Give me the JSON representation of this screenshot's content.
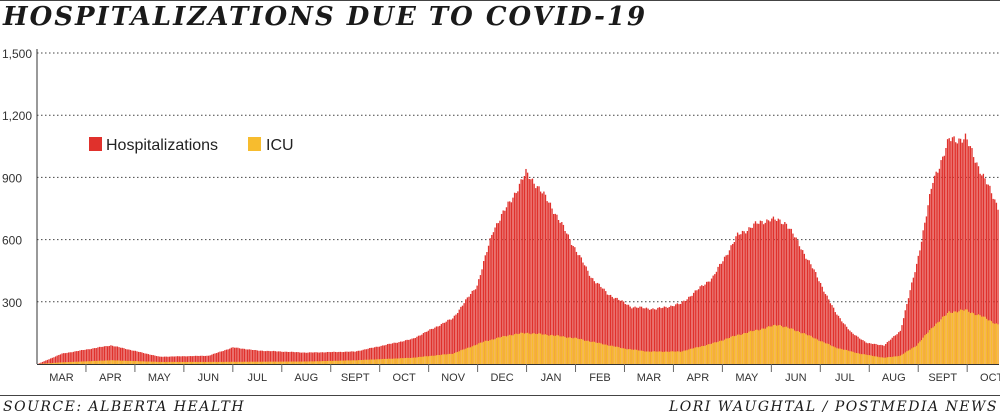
{
  "title": "HOSPITALIZATIONS DUE TO COVID-19",
  "source": "SOURCE: ALBERTA HEALTH",
  "credit": "LORI WAUGHTAL / POSTMEDIA NEWS",
  "colors": {
    "hospitalizations": "#e0312c",
    "icu": "#f7bc2e"
  },
  "chart_data": {
    "type": "bar",
    "ylim": [
      0,
      1500
    ],
    "yticks": [
      {
        "value": 300,
        "label": "300"
      },
      {
        "value": 600,
        "label": "600"
      },
      {
        "value": 900,
        "label": "900"
      },
      {
        "value": 1200,
        "label": "1,200"
      },
      {
        "value": 1500,
        "label": "1,500"
      }
    ],
    "grid": "horizontal-dotted",
    "legend_position": "upper-left",
    "months": [
      "MAR",
      "APR",
      "MAY",
      "JUN",
      "JUL",
      "AUG",
      "SEPT",
      "OCT",
      "NOV",
      "DEC",
      "JAN",
      "FEB",
      "MAR",
      "APR",
      "MAY",
      "JUN",
      "JUL",
      "AUG",
      "SEPT",
      "OCT"
    ],
    "series": [
      {
        "name": "Hospitalizations",
        "key": "hospitalizations",
        "points": [
          [
            0,
            0
          ],
          [
            15,
            50
          ],
          [
            45,
            90
          ],
          [
            75,
            35
          ],
          [
            105,
            40
          ],
          [
            120,
            80
          ],
          [
            135,
            65
          ],
          [
            165,
            55
          ],
          [
            195,
            60
          ],
          [
            230,
            120
          ],
          [
            255,
            220
          ],
          [
            270,
            380
          ],
          [
            280,
            650
          ],
          [
            290,
            780
          ],
          [
            300,
            920
          ],
          [
            305,
            880
          ],
          [
            315,
            770
          ],
          [
            330,
            560
          ],
          [
            340,
            420
          ],
          [
            350,
            340
          ],
          [
            365,
            275
          ],
          [
            380,
            265
          ],
          [
            395,
            290
          ],
          [
            415,
            420
          ],
          [
            430,
            620
          ],
          [
            440,
            670
          ],
          [
            450,
            700
          ],
          [
            460,
            680
          ],
          [
            475,
            480
          ],
          [
            490,
            250
          ],
          [
            500,
            150
          ],
          [
            510,
            100
          ],
          [
            520,
            90
          ],
          [
            530,
            160
          ],
          [
            540,
            480
          ],
          [
            550,
            880
          ],
          [
            560,
            1080
          ],
          [
            570,
            1090
          ],
          [
            580,
            920
          ],
          [
            590,
            760
          ]
        ]
      },
      {
        "name": "ICU",
        "key": "icu",
        "points": [
          [
            0,
            0
          ],
          [
            15,
            8
          ],
          [
            45,
            18
          ],
          [
            75,
            10
          ],
          [
            105,
            10
          ],
          [
            165,
            12
          ],
          [
            195,
            18
          ],
          [
            230,
            30
          ],
          [
            255,
            50
          ],
          [
            275,
            110
          ],
          [
            290,
            140
          ],
          [
            300,
            150
          ],
          [
            315,
            140
          ],
          [
            330,
            125
          ],
          [
            345,
            100
          ],
          [
            360,
            75
          ],
          [
            375,
            60
          ],
          [
            395,
            60
          ],
          [
            415,
            100
          ],
          [
            430,
            140
          ],
          [
            445,
            170
          ],
          [
            455,
            190
          ],
          [
            470,
            150
          ],
          [
            490,
            80
          ],
          [
            505,
            50
          ],
          [
            520,
            30
          ],
          [
            530,
            40
          ],
          [
            540,
            90
          ],
          [
            550,
            180
          ],
          [
            560,
            250
          ],
          [
            570,
            260
          ],
          [
            580,
            230
          ],
          [
            590,
            190
          ]
        ]
      }
    ]
  }
}
